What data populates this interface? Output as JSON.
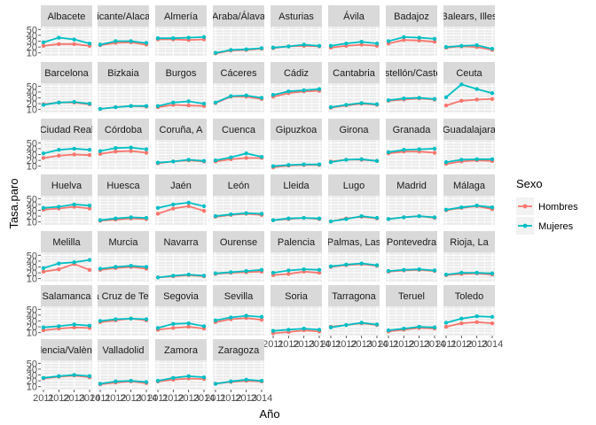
{
  "chart_data": {
    "type": "line",
    "xlabel": "Año",
    "ylabel": "Tasa.paro",
    "x": [
      2011,
      2012,
      2013,
      2014
    ],
    "x_ticks": [
      2011,
      2012,
      2013,
      2014
    ],
    "x_tick_labels": [
      "2011",
      "2012",
      "2013",
      "2014"
    ],
    "y_ticks": [
      10,
      20,
      30,
      40,
      50
    ],
    "y_tick_labels": [
      "10",
      "20",
      "30",
      "40",
      "50"
    ],
    "ylim": [
      5,
      55
    ],
    "grid": true,
    "legend": {
      "title": "Sexo",
      "position": "right",
      "entries": [
        {
          "name": "Hombres",
          "color": "#F8766D"
        },
        {
          "name": "Mujeres",
          "color": "#00BFC4"
        }
      ]
    },
    "facet_ncol": 8,
    "facets": [
      {
        "label": "Albacete",
        "hombres": [
          22,
          25,
          25,
          22
        ],
        "mujeres": [
          28,
          36,
          33,
          26
        ]
      },
      {
        "label": "Alicante/Alacant",
        "hombres": [
          23,
          27,
          28,
          24
        ],
        "mujeres": [
          24,
          30,
          30,
          27
        ]
      },
      {
        "label": "Almería",
        "hombres": [
          33,
          33,
          32,
          33
        ],
        "mujeres": [
          35,
          35,
          36,
          37
        ]
      },
      {
        "label": "Araba/Álava",
        "hombres": [
          9,
          14,
          15,
          17
        ],
        "mujeres": [
          10,
          15,
          16,
          18
        ]
      },
      {
        "label": "Asturias",
        "hombres": [
          18,
          21,
          22,
          21
        ],
        "mujeres": [
          19,
          21,
          24,
          22
        ]
      },
      {
        "label": "Ávila",
        "hombres": [
          19,
          22,
          24,
          22
        ],
        "mujeres": [
          22,
          26,
          29,
          26
        ]
      },
      {
        "label": "Badajoz",
        "hombres": [
          26,
          32,
          31,
          29
        ],
        "mujeres": [
          30,
          37,
          36,
          34
        ]
      },
      {
        "label": "Balears, Illes",
        "hombres": [
          19,
          21,
          20,
          15
        ],
        "mujeres": [
          20,
          22,
          23,
          17
        ]
      },
      {
        "label": "Barcelona",
        "hombres": [
          19,
          22,
          22,
          19
        ],
        "mujeres": [
          18,
          22,
          23,
          20
        ]
      },
      {
        "label": "Bizkaia",
        "hombres": [
          11,
          14,
          16,
          15
        ],
        "mujeres": [
          11,
          14,
          16,
          16
        ]
      },
      {
        "label": "Burgos",
        "hombres": [
          14,
          18,
          17,
          16
        ],
        "mujeres": [
          16,
          22,
          24,
          20
        ]
      },
      {
        "label": "Cáceres",
        "hombres": [
          21,
          32,
          32,
          28
        ],
        "mujeres": [
          22,
          33,
          34,
          30
        ]
      },
      {
        "label": "Cádiz",
        "hombres": [
          32,
          38,
          41,
          42
        ],
        "mujeres": [
          35,
          41,
          43,
          45
        ]
      },
      {
        "label": "Cantabria",
        "hombres": [
          13,
          17,
          20,
          18
        ],
        "mujeres": [
          14,
          18,
          21,
          19
        ]
      },
      {
        "label": "Castellón/Castelló",
        "hombres": [
          25,
          27,
          29,
          27
        ],
        "mujeres": [
          26,
          29,
          30,
          28
        ]
      },
      {
        "label": "Ceuta",
        "hombres": [
          17,
          25,
          27,
          28
        ],
        "mujeres": [
          31,
          53,
          45,
          38
        ]
      },
      {
        "label": "Ciudad Real",
        "hombres": [
          24,
          28,
          30,
          29
        ],
        "mujeres": [
          32,
          38,
          40,
          38
        ]
      },
      {
        "label": "Córdoba",
        "hombres": [
          31,
          35,
          36,
          33
        ],
        "mujeres": [
          36,
          41,
          42,
          39
        ]
      },
      {
        "label": "Coruña, A",
        "hombres": [
          15,
          18,
          20,
          18
        ],
        "mujeres": [
          16,
          18,
          21,
          19
        ]
      },
      {
        "label": "Cuenca",
        "hombres": [
          18,
          22,
          24,
          24
        ],
        "mujeres": [
          20,
          25,
          32,
          26
        ]
      },
      {
        "label": "Gipuzkoa",
        "hombres": [
          8,
          11,
          12,
          12
        ],
        "mujeres": [
          10,
          12,
          13,
          13
        ]
      },
      {
        "label": "Girona",
        "hombres": [
          18,
          21,
          21,
          19
        ],
        "mujeres": [
          17,
          21,
          22,
          19
        ]
      },
      {
        "label": "Granada",
        "hombres": [
          32,
          35,
          35,
          33
        ],
        "mujeres": [
          34,
          38,
          39,
          40
        ]
      },
      {
        "label": "Guadalajara",
        "hombres": [
          14,
          18,
          20,
          19
        ],
        "mujeres": [
          17,
          21,
          22,
          22
        ]
      },
      {
        "label": "Huelva",
        "hombres": [
          31,
          33,
          36,
          33
        ],
        "mujeres": [
          34,
          36,
          40,
          38
        ]
      },
      {
        "label": "Huesca",
        "hombres": [
          12,
          14,
          16,
          15
        ],
        "mujeres": [
          13,
          16,
          18,
          17
        ]
      },
      {
        "label": "Jaén",
        "hombres": [
          24,
          33,
          37,
          29
        ],
        "mujeres": [
          34,
          40,
          43,
          37
        ]
      },
      {
        "label": "León",
        "hombres": [
          19,
          22,
          24,
          22
        ],
        "mujeres": [
          20,
          23,
          25,
          24
        ]
      },
      {
        "label": "Lleida",
        "hombres": [
          13,
          15,
          17,
          15
        ],
        "mujeres": [
          13,
          16,
          17,
          16
        ]
      },
      {
        "label": "Lugo",
        "hombres": [
          11,
          16,
          19,
          16
        ],
        "mujeres": [
          11,
          15,
          20,
          17
        ]
      },
      {
        "label": "Madrid",
        "hombres": [
          15,
          18,
          20,
          17
        ],
        "mujeres": [
          15,
          18,
          20,
          18
        ]
      },
      {
        "label": "Málaga",
        "hombres": [
          30,
          34,
          37,
          32
        ],
        "mujeres": [
          31,
          35,
          38,
          35
        ]
      },
      {
        "label": "Melilla",
        "hombres": [
          22,
          26,
          35,
          25
        ],
        "mujeres": [
          28,
          36,
          38,
          42
        ]
      },
      {
        "label": "Murcia",
        "hombres": [
          25,
          28,
          30,
          27
        ],
        "mujeres": [
          27,
          30,
          32,
          30
        ]
      },
      {
        "label": "Navarra",
        "hombres": [
          12,
          14,
          16,
          14
        ],
        "mujeres": [
          12,
          15,
          17,
          15
        ]
      },
      {
        "label": "Ourense",
        "hombres": [
          18,
          20,
          21,
          22
        ],
        "mujeres": [
          19,
          21,
          23,
          25
        ]
      },
      {
        "label": "Palencia",
        "hombres": [
          16,
          18,
          22,
          20
        ],
        "mujeres": [
          20,
          24,
          26,
          25
        ]
      },
      {
        "label": "Palmas, Las",
        "hombres": [
          30,
          33,
          35,
          32
        ],
        "mujeres": [
          31,
          34,
          36,
          33
        ]
      },
      {
        "label": "Pontevedra",
        "hombres": [
          22,
          24,
          25,
          23
        ],
        "mujeres": [
          23,
          25,
          26,
          24
        ]
      },
      {
        "label": "Rioja, La",
        "hombres": [
          16,
          18,
          19,
          17
        ],
        "mujeres": [
          17,
          20,
          20,
          19
        ]
      },
      {
        "label": "Salamanca",
        "hombres": [
          14,
          17,
          19,
          18
        ],
        "mujeres": [
          19,
          21,
          24,
          22
        ]
      },
      {
        "label": "Santa Cruz de Tenerife",
        "hombres": [
          28,
          31,
          34,
          31
        ],
        "mujeres": [
          30,
          33,
          34,
          33
        ]
      },
      {
        "label": "Segovia",
        "hombres": [
          15,
          18,
          20,
          17
        ],
        "mujeres": [
          18,
          25,
          26,
          21
        ]
      },
      {
        "label": "Sevilla",
        "hombres": [
          28,
          33,
          35,
          32
        ],
        "mujeres": [
          31,
          36,
          39,
          37
        ]
      },
      {
        "label": "Soria",
        "hombres": [
          9,
          11,
          14,
          12
        ],
        "mujeres": [
          13,
          15,
          17,
          15
        ]
      },
      {
        "label": "Tarragona",
        "hombres": [
          20,
          23,
          26,
          23
        ],
        "mujeres": [
          19,
          23,
          27,
          24
        ]
      },
      {
        "label": "Teruel",
        "hombres": [
          12,
          15,
          18,
          17
        ],
        "mujeres": [
          14,
          17,
          20,
          19
        ]
      },
      {
        "label": "Toledo",
        "hombres": [
          20,
          26,
          28,
          26
        ],
        "mujeres": [
          27,
          34,
          38,
          37
        ]
      },
      {
        "label": "Valencia/València",
        "hombres": [
          24,
          27,
          29,
          26
        ],
        "mujeres": [
          25,
          28,
          30,
          28
        ]
      },
      {
        "label": "Valladolid",
        "hombres": [
          14,
          17,
          19,
          16
        ],
        "mujeres": [
          15,
          19,
          20,
          18
        ]
      },
      {
        "label": "Zamora",
        "hombres": [
          19,
          22,
          24,
          23
        ],
        "mujeres": [
          20,
          25,
          28,
          26
        ]
      },
      {
        "label": "Zaragoza",
        "hombres": [
          15,
          18,
          20,
          19
        ],
        "mujeres": [
          15,
          19,
          22,
          20
        ]
      }
    ]
  }
}
